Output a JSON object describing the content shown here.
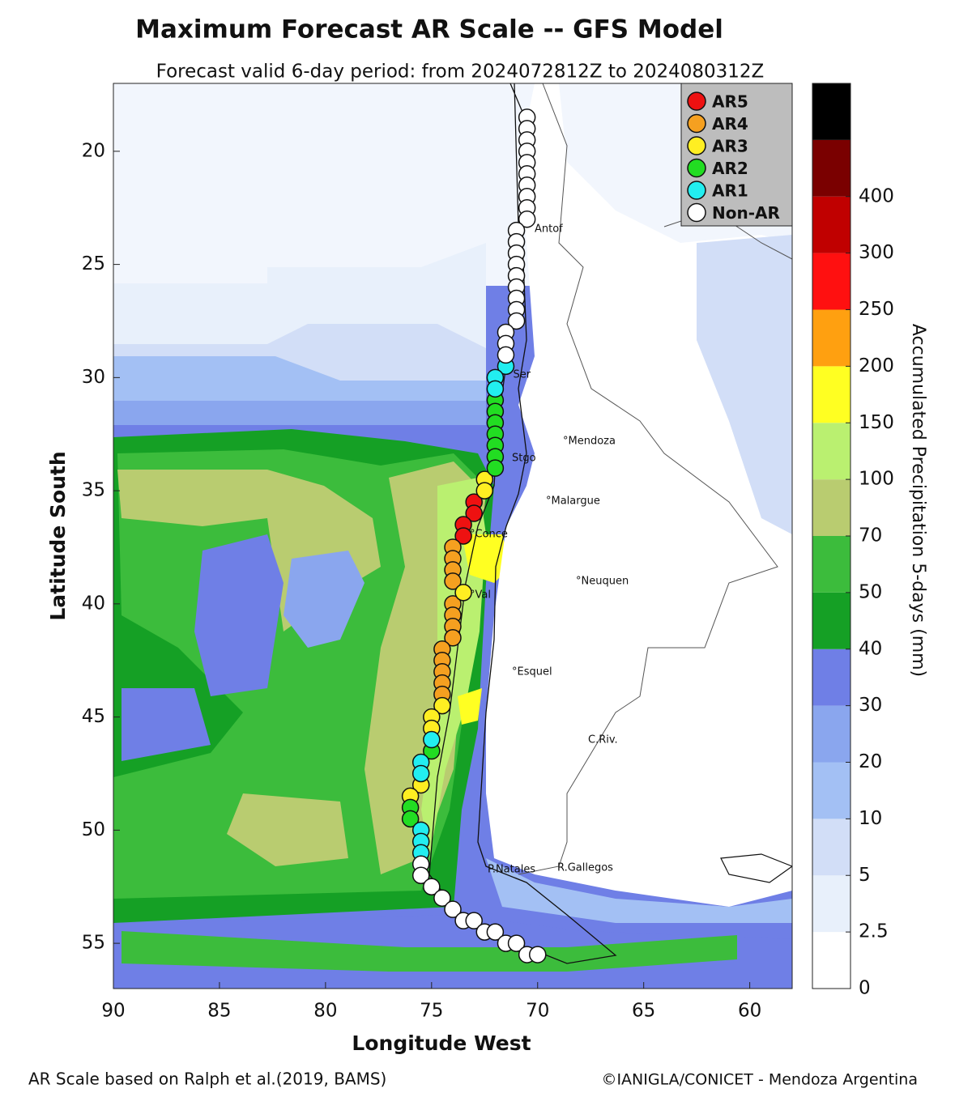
{
  "chart_data": {
    "type": "map",
    "title": "Maximum Forecast AR Scale -- GFS Model",
    "subtitle": "Forecast valid 6-day period: from 2024072812Z to 2024080312Z",
    "x_label": "Longitude West",
    "y_label": "Latitude South",
    "xlim": [
      90,
      58
    ],
    "ylim": [
      57,
      17
    ],
    "xticks": [
      90,
      85,
      80,
      75,
      70,
      65,
      60
    ],
    "yticks": [
      20,
      25,
      30,
      35,
      40,
      45,
      50,
      55
    ],
    "series": [
      {
        "name": "AR5",
        "color": "#ee1111",
        "lon": [
          73.0,
          73.0,
          73.5,
          73.5
        ],
        "lat": [
          35.5,
          36.0,
          36.5,
          37.0
        ]
      },
      {
        "name": "AR4",
        "color": "#f5a020",
        "lon": [
          74.0,
          74.0,
          74.0,
          74.0,
          74.0,
          74.0,
          74.0,
          74.0,
          74.5,
          74.5,
          74.5,
          74.5,
          74.5
        ],
        "lat": [
          37.5,
          38.0,
          38.5,
          39.0,
          40.0,
          40.5,
          41.0,
          41.5,
          42.0,
          42.5,
          43.0,
          43.5,
          44.0
        ]
      },
      {
        "name": "AR3",
        "color": "#ffee22",
        "lon": [
          72.5,
          72.5,
          73.5,
          74.5,
          75.0,
          75.0,
          75.5,
          76.0
        ],
        "lat": [
          34.5,
          35.0,
          39.5,
          44.5,
          45.0,
          45.5,
          48.0,
          48.5
        ]
      },
      {
        "name": "AR2",
        "color": "#22dd22",
        "lon": [
          72.0,
          72.0,
          72.0,
          72.0,
          72.0,
          72.0,
          72.0,
          75.0,
          76.0,
          76.0
        ],
        "lat": [
          31.0,
          31.5,
          32.0,
          32.5,
          33.0,
          33.5,
          34.0,
          46.5,
          49.0,
          49.5
        ]
      },
      {
        "name": "AR1",
        "color": "#22eef0",
        "lon": [
          71.5,
          72.0,
          72.0,
          75.0,
          75.5,
          75.5,
          75.5,
          75.5,
          75.5
        ],
        "lat": [
          29.5,
          30.0,
          30.5,
          46.0,
          47.0,
          47.5,
          50.0,
          50.5,
          51.0
        ]
      },
      {
        "name": "Non-AR",
        "color": "#ffffff",
        "lon": [
          70.5,
          70.5,
          70.5,
          70.5,
          70.5,
          70.5,
          70.5,
          70.5,
          70.5,
          70.5,
          71.0,
          71.0,
          71.0,
          71.0,
          71.0,
          71.0,
          71.0,
          71.0,
          71.0,
          71.5,
          71.5,
          71.5,
          75.5,
          75.5,
          75.0,
          74.5,
          74.0,
          73.5,
          73.0,
          72.5,
          72.0,
          71.5,
          71.0,
          70.5,
          70.0
        ],
        "lat": [
          18.5,
          19.0,
          19.5,
          20.0,
          20.5,
          21.0,
          21.5,
          22.0,
          22.5,
          23.0,
          23.5,
          24.0,
          24.5,
          25.0,
          25.5,
          26.0,
          26.5,
          27.0,
          27.5,
          28.0,
          28.5,
          29.0,
          51.5,
          52.0,
          52.5,
          53.0,
          53.5,
          54.0,
          54.0,
          54.5,
          54.5,
          55.0,
          55.0,
          55.5,
          55.5
        ]
      }
    ],
    "colorbar": {
      "label": "Accumulated Precipitation 5-days (mm)",
      "levels": [
        0,
        2.5,
        5,
        10,
        20,
        30,
        40,
        50,
        70,
        100,
        150,
        200,
        250,
        300,
        400
      ],
      "colors": [
        "#ffffff",
        "#e8f0fb",
        "#d2def7",
        "#a3c0f4",
        "#8aa6ee",
        "#6f7fe6",
        "#15a025",
        "#3cbc3c",
        "#b9cc70",
        "#baf070",
        "#ffff22",
        "#ffa010",
        "#ff1010",
        "#c00000",
        "#7a0000",
        "#000000"
      ]
    },
    "places": [
      "Antof",
      "°Ser",
      "°Mendoza",
      "Stgo",
      "°Malargue",
      "°Conce",
      "°Val",
      "°Neuquen",
      "°Esquel",
      "C.Riv.",
      "P.Natales",
      "R.Gallegos"
    ],
    "footer_left": "AR Scale based on Ralph et al.(2019, BAMS)",
    "footer_right": "©IANIGLA/CONICET - Mendoza Argentina"
  }
}
